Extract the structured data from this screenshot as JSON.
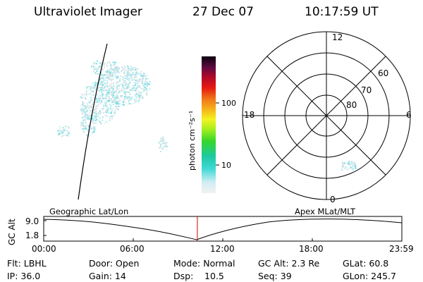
{
  "header": {
    "instrument": "Ultraviolet Imager",
    "date": "27 Dec 07",
    "time": "10:17:59 UT"
  },
  "colorbar": {
    "label": "photon cm⁻²s⁻¹",
    "ticks": [
      "100",
      "10"
    ]
  },
  "polar_plot": {
    "mlt_labels": {
      "top": "12",
      "left": "18",
      "right": "6",
      "bottom": "0"
    },
    "lat_labels": [
      "60",
      "70",
      "80"
    ]
  },
  "timeline": {
    "left_title": "Geographic Lat/Lon",
    "right_title": "Apex MLat/MLT",
    "yaxis_label": "GC Alt",
    "y_ticks": [
      "9.0",
      "1.8"
    ],
    "x_ticks": [
      "00:00",
      "06:00",
      "12:00",
      "18:00",
      "23:59"
    ],
    "cursor_color": "#cc0000",
    "cursor_time_fraction": 0.429
  },
  "info": {
    "row1": [
      "Flt: LBHL",
      "Door: Open",
      "Mode: Normal",
      "GC Alt: 2.3 Re",
      "GLat: 60.8"
    ],
    "row2": [
      "IP: 36.0",
      "Gain: 14",
      "Dsp:",
      "10.5",
      "Seq: 39",
      "GLon: 245.7"
    ]
  }
}
